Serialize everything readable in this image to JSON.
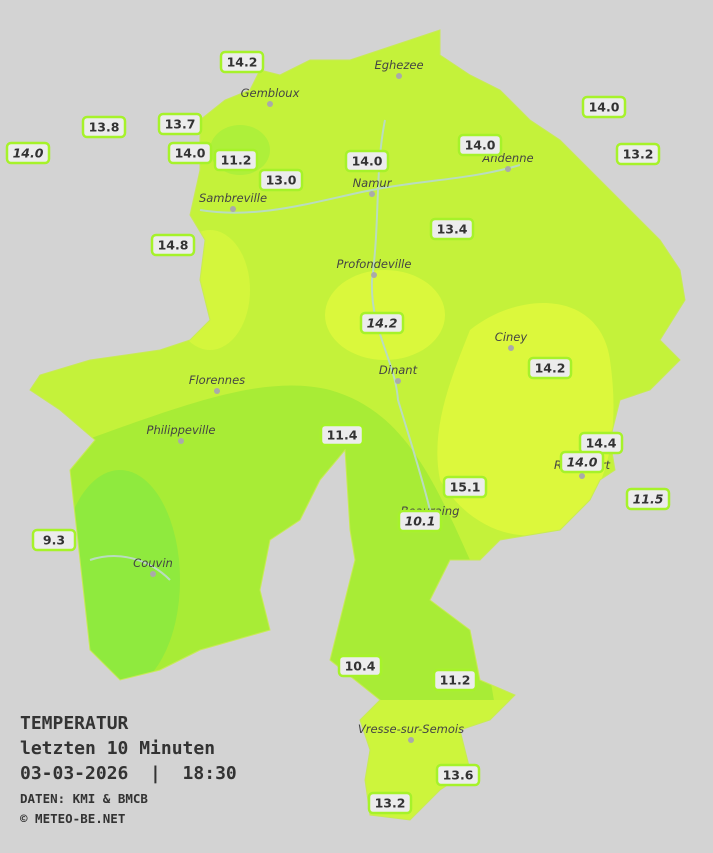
{
  "title": {
    "heading": "TEMPERATUR",
    "period": "letzten 10 Minuten",
    "timestamp": "03-03-2026  |  18:30",
    "source": "DATEN: KMI & BMCB",
    "copyright": "© METEO-BE.NET"
  },
  "cities": [
    {
      "name": "Eghezee"
    },
    {
      "name": "Gembloux"
    },
    {
      "name": "Andenne"
    },
    {
      "name": "Namur"
    },
    {
      "name": "Sambreville"
    },
    {
      "name": "Profondeville"
    },
    {
      "name": "Ciney"
    },
    {
      "name": "Dinant"
    },
    {
      "name": "Florennes"
    },
    {
      "name": "Philippeville"
    },
    {
      "name": "Rochefort"
    },
    {
      "name": "Beauraing"
    },
    {
      "name": "Couvin"
    },
    {
      "name": "Vresse-sur-Semois"
    }
  ],
  "stations": [
    {
      "label": "14.2",
      "italic": false
    },
    {
      "label": "13.8",
      "italic": false
    },
    {
      "label": "13.7",
      "italic": false
    },
    {
      "label": "14.0",
      "italic": true
    },
    {
      "label": "14.0",
      "italic": false
    },
    {
      "label": "11.2",
      "italic": false
    },
    {
      "label": "13.0",
      "italic": false
    },
    {
      "label": "14.0",
      "italic": false
    },
    {
      "label": "14.0",
      "italic": false
    },
    {
      "label": "14.0",
      "italic": false
    },
    {
      "label": "13.2",
      "italic": false
    },
    {
      "label": "14.8",
      "italic": false
    },
    {
      "label": "13.4",
      "italic": false
    },
    {
      "label": "14.2",
      "italic": true
    },
    {
      "label": "14.2",
      "italic": false
    },
    {
      "label": "11.4",
      "italic": false
    },
    {
      "label": "14.4",
      "italic": false
    },
    {
      "label": "14.0",
      "italic": true
    },
    {
      "label": "15.1",
      "italic": false
    },
    {
      "label": "11.5",
      "italic": true
    },
    {
      "label": "10.1",
      "italic": true
    },
    {
      "label": "9.3",
      "italic": false
    },
    {
      "label": "10.4",
      "italic": false
    },
    {
      "label": "11.2",
      "italic": false
    },
    {
      "label": "13.6",
      "italic": false
    },
    {
      "label": "13.2",
      "italic": false
    }
  ]
}
